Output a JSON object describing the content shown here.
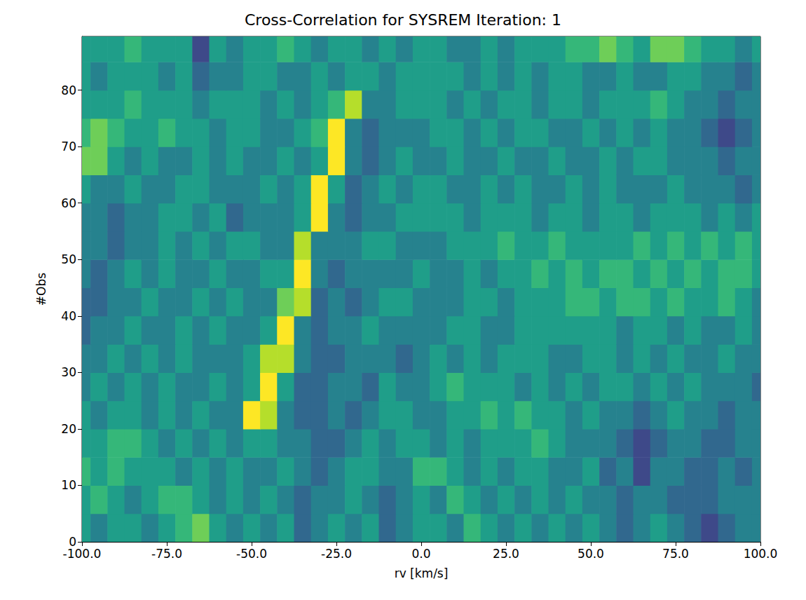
{
  "chart_data": {
    "type": "heatmap",
    "title": "Cross-Correlation for SYSREM Iteration: 1",
    "x_label": "rv [km/s]",
    "y_label": "#Obs",
    "xlim": [
      -100,
      100
    ],
    "ylim": [
      0,
      89.5
    ],
    "xticks": [
      {
        "value": -100,
        "label": "-100.0"
      },
      {
        "value": -75,
        "label": "-75.0"
      },
      {
        "value": -50,
        "label": "-50.0"
      },
      {
        "value": -25,
        "label": "-25.0"
      },
      {
        "value": 0,
        "label": "0.0"
      },
      {
        "value": 25,
        "label": "25.0"
      },
      {
        "value": 50,
        "label": "50.0"
      },
      {
        "value": 75,
        "label": "75.0"
      },
      {
        "value": 100,
        "label": "100.0"
      }
    ],
    "yticks": [
      0,
      10,
      20,
      30,
      40,
      50,
      60,
      70,
      80
    ],
    "x": [
      -100,
      -95,
      -90,
      -85,
      -80,
      -75,
      -70,
      -65,
      -60,
      -55,
      -50,
      -45,
      -40,
      -35,
      -30,
      -25,
      -20,
      -15,
      -10,
      -5,
      0,
      5,
      10,
      15,
      20,
      25,
      30,
      35,
      40,
      45,
      50,
      55,
      60,
      65,
      70,
      75,
      80,
      85,
      90,
      95,
      100
    ],
    "y": [
      2.5,
      7.5,
      12.5,
      17.5,
      22.5,
      27.5,
      32.5,
      37.5,
      42.5,
      47.5,
      52.5,
      57.5,
      62.5,
      67.5,
      72.5,
      77.5,
      82.5,
      87.5
    ],
    "zlim": [
      0,
      9
    ],
    "cells": [
      [
        5,
        4,
        5,
        5,
        4,
        5,
        6,
        7,
        5,
        4,
        5,
        4,
        5,
        3,
        4,
        5,
        4,
        5,
        3,
        4,
        5,
        5,
        4,
        6,
        5,
        4,
        5,
        4,
        5,
        4,
        5,
        4,
        3,
        4,
        5,
        4,
        3,
        2,
        3,
        4,
        4
      ],
      [
        5,
        6,
        5,
        4,
        5,
        6,
        6,
        5,
        4,
        5,
        4,
        5,
        4,
        3,
        4,
        4,
        5,
        4,
        3,
        4,
        5,
        4,
        6,
        5,
        4,
        5,
        4,
        5,
        4,
        5,
        4,
        4,
        3,
        4,
        4,
        3,
        3,
        3,
        4,
        4,
        4
      ],
      [
        6,
        5,
        6,
        5,
        5,
        5,
        4,
        5,
        4,
        5,
        4,
        4,
        5,
        4,
        3,
        4,
        5,
        5,
        4,
        4,
        6,
        6,
        5,
        4,
        5,
        4,
        5,
        5,
        4,
        4,
        5,
        3,
        4,
        2,
        4,
        4,
        3,
        3,
        4,
        3,
        4
      ],
      [
        5,
        5,
        6,
        6,
        5,
        4,
        5,
        4,
        5,
        4,
        5,
        5,
        4,
        4,
        3,
        3,
        4,
        5,
        4,
        5,
        5,
        4,
        5,
        4,
        5,
        5,
        5,
        6,
        5,
        4,
        4,
        4,
        3,
        2,
        3,
        4,
        4,
        3,
        3,
        4,
        4
      ],
      [
        5,
        4,
        5,
        5,
        4,
        5,
        4,
        5,
        4,
        4,
        9,
        8,
        4,
        3,
        3,
        4,
        3,
        4,
        5,
        5,
        4,
        4,
        5,
        5,
        6,
        5,
        6,
        5,
        5,
        4,
        5,
        4,
        4,
        3,
        4,
        5,
        4,
        4,
        3,
        4,
        4
      ],
      [
        4,
        5,
        4,
        5,
        4,
        5,
        4,
        4,
        5,
        4,
        5,
        9,
        5,
        3,
        3,
        4,
        4,
        3,
        5,
        4,
        4,
        5,
        6,
        5,
        5,
        5,
        4,
        5,
        4,
        5,
        4,
        5,
        5,
        4,
        5,
        4,
        5,
        4,
        4,
        4,
        3
      ],
      [
        4,
        4,
        5,
        4,
        5,
        4,
        5,
        4,
        4,
        4,
        5,
        8,
        8,
        4,
        3,
        3,
        4,
        4,
        4,
        3,
        4,
        5,
        4,
        5,
        4,
        5,
        5,
        5,
        4,
        4,
        5,
        5,
        4,
        5,
        4,
        5,
        4,
        4,
        5,
        4,
        4
      ],
      [
        3,
        4,
        4,
        5,
        4,
        4,
        5,
        4,
        5,
        4,
        4,
        5,
        9,
        4,
        3,
        4,
        4,
        5,
        4,
        4,
        4,
        4,
        5,
        5,
        4,
        4,
        5,
        5,
        5,
        5,
        5,
        5,
        4,
        5,
        5,
        4,
        5,
        4,
        4,
        5,
        4
      ],
      [
        3,
        3,
        4,
        4,
        5,
        4,
        4,
        5,
        4,
        5,
        4,
        4,
        7,
        8,
        3,
        4,
        3,
        4,
        5,
        5,
        4,
        4,
        4,
        5,
        5,
        4,
        5,
        5,
        5,
        6,
        6,
        5,
        6,
        6,
        5,
        6,
        5,
        5,
        6,
        5,
        4
      ],
      [
        4,
        3,
        4,
        5,
        4,
        5,
        4,
        4,
        5,
        4,
        4,
        5,
        5,
        9,
        4,
        3,
        4,
        4,
        4,
        4,
        5,
        4,
        4,
        5,
        4,
        5,
        5,
        6,
        5,
        6,
        5,
        6,
        6,
        5,
        6,
        5,
        6,
        5,
        6,
        6,
        5
      ],
      [
        4,
        4,
        3,
        4,
        4,
        5,
        4,
        5,
        4,
        5,
        5,
        4,
        4,
        8,
        4,
        4,
        4,
        5,
        5,
        4,
        4,
        4,
        5,
        5,
        5,
        6,
        5,
        5,
        6,
        5,
        5,
        5,
        5,
        6,
        5,
        6,
        5,
        6,
        5,
        6,
        5
      ],
      [
        4,
        4,
        3,
        4,
        4,
        5,
        5,
        4,
        5,
        3,
        4,
        4,
        4,
        5,
        9,
        4,
        3,
        4,
        4,
        5,
        5,
        5,
        5,
        4,
        5,
        5,
        5,
        4,
        5,
        5,
        4,
        5,
        5,
        4,
        5,
        5,
        5,
        4,
        5,
        4,
        5
      ],
      [
        5,
        4,
        4,
        5,
        4,
        4,
        5,
        5,
        4,
        4,
        4,
        5,
        4,
        5,
        9,
        5,
        3,
        4,
        5,
        4,
        5,
        5,
        4,
        4,
        5,
        4,
        5,
        4,
        4,
        5,
        4,
        5,
        4,
        4,
        4,
        5,
        4,
        4,
        4,
        3,
        4
      ],
      [
        7,
        7,
        5,
        4,
        5,
        4,
        4,
        5,
        4,
        5,
        4,
        4,
        5,
        4,
        5,
        9,
        4,
        3,
        4,
        5,
        4,
        4,
        5,
        4,
        4,
        5,
        4,
        4,
        5,
        4,
        4,
        5,
        4,
        5,
        5,
        4,
        4,
        4,
        3,
        4,
        4
      ],
      [
        6,
        7,
        6,
        5,
        5,
        6,
        5,
        5,
        4,
        5,
        5,
        4,
        4,
        5,
        6,
        9,
        4,
        3,
        4,
        4,
        4,
        5,
        5,
        4,
        5,
        4,
        5,
        5,
        4,
        4,
        5,
        4,
        5,
        4,
        5,
        4,
        4,
        3,
        2,
        3,
        4
      ],
      [
        5,
        5,
        5,
        6,
        5,
        5,
        5,
        4,
        5,
        5,
        5,
        4,
        5,
        4,
        5,
        6,
        8,
        4,
        4,
        5,
        5,
        5,
        4,
        5,
        4,
        5,
        5,
        4,
        5,
        5,
        4,
        5,
        5,
        5,
        6,
        5,
        4,
        4,
        3,
        4,
        4
      ],
      [
        5,
        4,
        5,
        5,
        5,
        4,
        5,
        3,
        4,
        4,
        5,
        5,
        4,
        4,
        5,
        4,
        5,
        5,
        4,
        5,
        5,
        5,
        5,
        4,
        5,
        4,
        5,
        4,
        5,
        5,
        4,
        4,
        5,
        4,
        4,
        5,
        5,
        4,
        4,
        3,
        4
      ],
      [
        5,
        5,
        5,
        6,
        5,
        5,
        5,
        2,
        5,
        4,
        5,
        5,
        6,
        5,
        4,
        5,
        5,
        4,
        5,
        4,
        5,
        5,
        4,
        4,
        5,
        4,
        5,
        5,
        5,
        6,
        6,
        7,
        6,
        5,
        7,
        7,
        6,
        5,
        5,
        4,
        5
      ]
    ]
  }
}
